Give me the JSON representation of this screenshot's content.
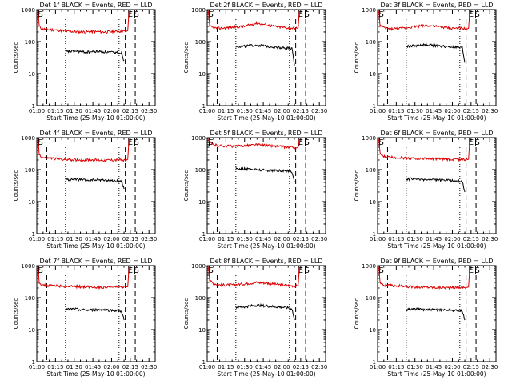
{
  "chart_data": [
    {
      "type": "line",
      "title": "Det 1f BLACK = Events, RED = LLD",
      "xlabel": "Start Time (25-May-10 01:00:00)",
      "ylabel": "Counts/sec",
      "xlim": [
        0,
        95
      ],
      "ylim": [
        1,
        1000
      ],
      "yscale": "log",
      "xticks": [
        "01:00",
        "01:15",
        "01:30",
        "01:45",
        "02:00",
        "02:15",
        "02:30"
      ],
      "yticks": [
        "1",
        "10",
        "100",
        "1000"
      ],
      "markers": [
        {
          "label": "S",
          "x": 1
        },
        {
          "label": "E",
          "x": 73
        },
        {
          "label": "S",
          "x": 78
        }
      ],
      "dashed_lines": [
        8,
        71,
        79
      ],
      "dotted_lines": [
        23,
        66
      ],
      "series": [
        {
          "color": "#dd0000",
          "x": [
            1,
            2,
            4,
            8,
            15,
            25,
            35,
            45,
            55,
            65,
            72,
            73,
            74
          ],
          "values": [
            900,
            300,
            250,
            240,
            230,
            210,
            200,
            205,
            200,
            210,
            210,
            220,
            900
          ]
        },
        {
          "color": "#000000",
          "x": [
            23,
            30,
            40,
            50,
            60,
            66,
            68,
            70
          ],
          "values": [
            48,
            50,
            47,
            49,
            46,
            45,
            44,
            25
          ]
        }
      ]
    },
    {
      "type": "line",
      "title": "Det 2f BLACK = Events, RED = LLD",
      "xlabel": "Start Time (25-May-10 01:00:00)",
      "ylabel": "Counts/sec",
      "xlim": [
        0,
        95
      ],
      "ylim": [
        1,
        1000
      ],
      "yscale": "log",
      "xticks": [
        "01:00",
        "01:15",
        "01:30",
        "01:45",
        "02:00",
        "02:15",
        "02:30"
      ],
      "yticks": [
        "1",
        "10",
        "100",
        "1000"
      ],
      "markers": [
        {
          "label": "S",
          "x": 1
        },
        {
          "label": "E",
          "x": 73
        },
        {
          "label": "S",
          "x": 78
        }
      ],
      "dashed_lines": [
        8,
        71,
        79
      ],
      "dotted_lines": [
        23,
        66
      ],
      "series": [
        {
          "color": "#dd0000",
          "x": [
            1,
            2,
            5,
            10,
            20,
            30,
            40,
            50,
            60,
            65,
            72,
            73,
            74
          ],
          "values": [
            900,
            300,
            270,
            260,
            280,
            300,
            380,
            320,
            280,
            270,
            260,
            270,
            900
          ]
        },
        {
          "color": "#000000",
          "x": [
            23,
            30,
            40,
            50,
            60,
            66,
            68,
            70
          ],
          "values": [
            70,
            72,
            78,
            70,
            65,
            62,
            60,
            18
          ]
        }
      ]
    },
    {
      "type": "line",
      "title": "Det 3f BLACK = Events, RED = LLD",
      "xlabel": "Start Time (25-May-10 01:00:00)",
      "ylabel": "Counts/sec",
      "xlim": [
        0,
        95
      ],
      "ylim": [
        1,
        1000
      ],
      "yscale": "log",
      "xticks": [
        "01:00",
        "01:15",
        "01:30",
        "01:45",
        "02:00",
        "02:15",
        "02:30"
      ],
      "yticks": [
        "1",
        "10",
        "100",
        "1000"
      ],
      "markers": [
        {
          "label": "S",
          "x": 1
        },
        {
          "label": "E",
          "x": 73
        },
        {
          "label": "S",
          "x": 78
        }
      ],
      "dashed_lines": [
        8,
        71,
        79
      ],
      "dotted_lines": [
        23,
        66
      ],
      "series": [
        {
          "color": "#dd0000",
          "x": [
            1,
            2,
            5,
            10,
            20,
            30,
            40,
            50,
            60,
            65,
            72,
            73,
            74
          ],
          "values": [
            900,
            320,
            270,
            250,
            260,
            300,
            320,
            290,
            260,
            260,
            250,
            260,
            900
          ]
        },
        {
          "color": "#000000",
          "x": [
            23,
            30,
            40,
            50,
            60,
            66,
            68,
            70
          ],
          "values": [
            70,
            75,
            80,
            72,
            68,
            65,
            62,
            22
          ]
        }
      ]
    },
    {
      "type": "line",
      "title": "Det 4f BLACK = Events, RED = LLD",
      "xlabel": "Start Time (25-May-10 01:00:00)",
      "ylabel": "Counts/sec",
      "xlim": [
        0,
        95
      ],
      "ylim": [
        1,
        1000
      ],
      "yscale": "log",
      "xticks": [
        "01:00",
        "01:15",
        "01:30",
        "01:45",
        "02:00",
        "02:15",
        "02:30"
      ],
      "yticks": [
        "1",
        "10",
        "100",
        "1000"
      ],
      "markers": [
        {
          "label": "S",
          "x": 1
        },
        {
          "label": "E",
          "x": 73
        },
        {
          "label": "S",
          "x": 78
        }
      ],
      "dashed_lines": [
        8,
        71,
        79
      ],
      "dotted_lines": [
        23,
        66
      ],
      "series": [
        {
          "color": "#dd0000",
          "x": [
            1,
            2,
            4,
            8,
            15,
            25,
            35,
            45,
            55,
            65,
            72,
            73,
            74
          ],
          "values": [
            900,
            300,
            240,
            230,
            220,
            205,
            200,
            200,
            195,
            200,
            200,
            210,
            900
          ]
        },
        {
          "color": "#000000",
          "x": [
            23,
            30,
            40,
            50,
            60,
            66,
            68,
            70
          ],
          "values": [
            48,
            50,
            46,
            48,
            45,
            44,
            42,
            25
          ]
        }
      ]
    },
    {
      "type": "line",
      "title": "Det 5f BLACK = Events, RED = LLD",
      "xlabel": "Start Time (25-May-10 01:00:00)",
      "ylabel": "Counts/sec",
      "xlim": [
        0,
        95
      ],
      "ylim": [
        1,
        1000
      ],
      "yscale": "log",
      "xticks": [
        "01:00",
        "01:15",
        "01:30",
        "01:45",
        "02:00",
        "02:15",
        "02:30"
      ],
      "yticks": [
        "1",
        "10",
        "100",
        "1000"
      ],
      "markers": [
        {
          "label": "S",
          "x": 1
        },
        {
          "label": "E",
          "x": 73
        },
        {
          "label": "S",
          "x": 78
        }
      ],
      "dashed_lines": [
        8,
        71,
        79
      ],
      "dotted_lines": [
        23,
        66
      ],
      "series": [
        {
          "color": "#dd0000",
          "x": [
            1,
            2,
            5,
            10,
            20,
            30,
            40,
            50,
            60,
            65,
            72,
            73,
            74
          ],
          "values": [
            900,
            700,
            600,
            560,
            540,
            560,
            600,
            560,
            520,
            500,
            480,
            500,
            900
          ]
        },
        {
          "color": "#000000",
          "x": [
            23,
            30,
            40,
            50,
            60,
            66,
            68,
            70
          ],
          "values": [
            110,
            105,
            100,
            95,
            92,
            90,
            88,
            40
          ]
        }
      ]
    },
    {
      "type": "line",
      "title": "Det 6f BLACK = Events, RED = LLD",
      "xlabel": "Start Time (25-May-10 01:00:00)",
      "ylabel": "Counts/sec",
      "xlim": [
        0,
        95
      ],
      "ylim": [
        1,
        1000
      ],
      "yscale": "log",
      "xticks": [
        "01:00",
        "01:15",
        "01:30",
        "01:45",
        "02:00",
        "02:15",
        "02:30"
      ],
      "yticks": [
        "1",
        "10",
        "100",
        "1000"
      ],
      "markers": [
        {
          "label": "S",
          "x": 1
        },
        {
          "label": "E",
          "x": 73
        },
        {
          "label": "S",
          "x": 78
        }
      ],
      "dashed_lines": [
        8,
        71,
        79
      ],
      "dotted_lines": [
        23,
        66
      ],
      "series": [
        {
          "color": "#dd0000",
          "x": [
            1,
            2,
            4,
            8,
            15,
            25,
            35,
            45,
            55,
            65,
            72,
            73,
            74
          ],
          "values": [
            900,
            320,
            260,
            250,
            240,
            230,
            220,
            220,
            210,
            210,
            205,
            210,
            900
          ]
        },
        {
          "color": "#000000",
          "x": [
            23,
            30,
            40,
            50,
            60,
            66,
            68,
            70
          ],
          "values": [
            50,
            52,
            48,
            47,
            45,
            44,
            43,
            20
          ]
        }
      ]
    },
    {
      "type": "line",
      "title": "Det 7f BLACK = Events, RED = LLD",
      "xlabel": "Start Time (25-May-10 01:00:00)",
      "ylabel": "Counts/sec",
      "xlim": [
        0,
        95
      ],
      "ylim": [
        1,
        1000
      ],
      "yscale": "log",
      "xticks": [
        "01:00",
        "01:15",
        "01:30",
        "01:45",
        "02:00",
        "02:15",
        "02:30"
      ],
      "yticks": [
        "1",
        "10",
        "100",
        "1000"
      ],
      "markers": [
        {
          "label": "S",
          "x": 1
        },
        {
          "label": "E",
          "x": 73
        },
        {
          "label": "S",
          "x": 78
        }
      ],
      "dashed_lines": [
        8,
        71,
        79
      ],
      "dotted_lines": [
        23,
        66
      ],
      "series": [
        {
          "color": "#dd0000",
          "x": [
            1,
            2,
            4,
            8,
            15,
            25,
            35,
            45,
            55,
            65,
            72,
            73,
            74
          ],
          "values": [
            900,
            300,
            250,
            240,
            235,
            225,
            220,
            215,
            210,
            215,
            215,
            220,
            900
          ]
        },
        {
          "color": "#000000",
          "x": [
            23,
            30,
            40,
            50,
            60,
            66,
            68,
            70
          ],
          "values": [
            42,
            44,
            40,
            42,
            40,
            38,
            37,
            20
          ]
        }
      ]
    },
    {
      "type": "line",
      "title": "Det 8f BLACK = Events, RED = LLD",
      "xlabel": "Start Time (25-May-10 01:00:00)",
      "ylabel": "Counts/sec",
      "xlim": [
        0,
        95
      ],
      "ylim": [
        1,
        1000
      ],
      "yscale": "log",
      "xticks": [
        "01:00",
        "01:15",
        "01:30",
        "01:45",
        "02:00",
        "02:15",
        "02:30"
      ],
      "yticks": [
        "1",
        "10",
        "100",
        "1000"
      ],
      "markers": [
        {
          "label": "S",
          "x": 1
        },
        {
          "label": "E",
          "x": 73
        },
        {
          "label": "S",
          "x": 78
        }
      ],
      "dashed_lines": [
        8,
        71,
        79
      ],
      "dotted_lines": [
        23,
        66
      ],
      "series": [
        {
          "color": "#dd0000",
          "x": [
            1,
            2,
            5,
            10,
            20,
            30,
            40,
            50,
            60,
            65,
            72,
            73,
            74
          ],
          "values": [
            900,
            340,
            280,
            250,
            250,
            270,
            300,
            280,
            250,
            240,
            230,
            240,
            900
          ]
        },
        {
          "color": "#000000",
          "x": [
            23,
            30,
            40,
            50,
            60,
            66,
            68,
            70
          ],
          "values": [
            50,
            52,
            58,
            54,
            50,
            48,
            45,
            20
          ]
        }
      ]
    },
    {
      "type": "line",
      "title": "Det 9f BLACK = Events, RED = LLD",
      "xlabel": "Start Time (25-May-10 01:00:00)",
      "ylabel": "Counts/sec",
      "xlim": [
        0,
        95
      ],
      "ylim": [
        1,
        1000
      ],
      "yscale": "log",
      "xticks": [
        "01:00",
        "01:15",
        "01:30",
        "01:45",
        "02:00",
        "02:15",
        "02:30"
      ],
      "yticks": [
        "1",
        "10",
        "100",
        "1000"
      ],
      "markers": [
        {
          "label": "S",
          "x": 1
        },
        {
          "label": "E",
          "x": 73
        },
        {
          "label": "S",
          "x": 78
        }
      ],
      "dashed_lines": [
        8,
        71,
        79
      ],
      "dotted_lines": [
        23,
        66
      ],
      "series": [
        {
          "color": "#dd0000",
          "x": [
            1,
            2,
            4,
            8,
            15,
            25,
            35,
            45,
            55,
            65,
            72,
            73,
            74
          ],
          "values": [
            900,
            300,
            250,
            240,
            235,
            220,
            215,
            210,
            205,
            210,
            210,
            215,
            900
          ]
        },
        {
          "color": "#000000",
          "x": [
            23,
            30,
            40,
            50,
            60,
            66,
            68,
            70
          ],
          "values": [
            42,
            44,
            41,
            42,
            40,
            39,
            38,
            20
          ]
        }
      ]
    }
  ]
}
